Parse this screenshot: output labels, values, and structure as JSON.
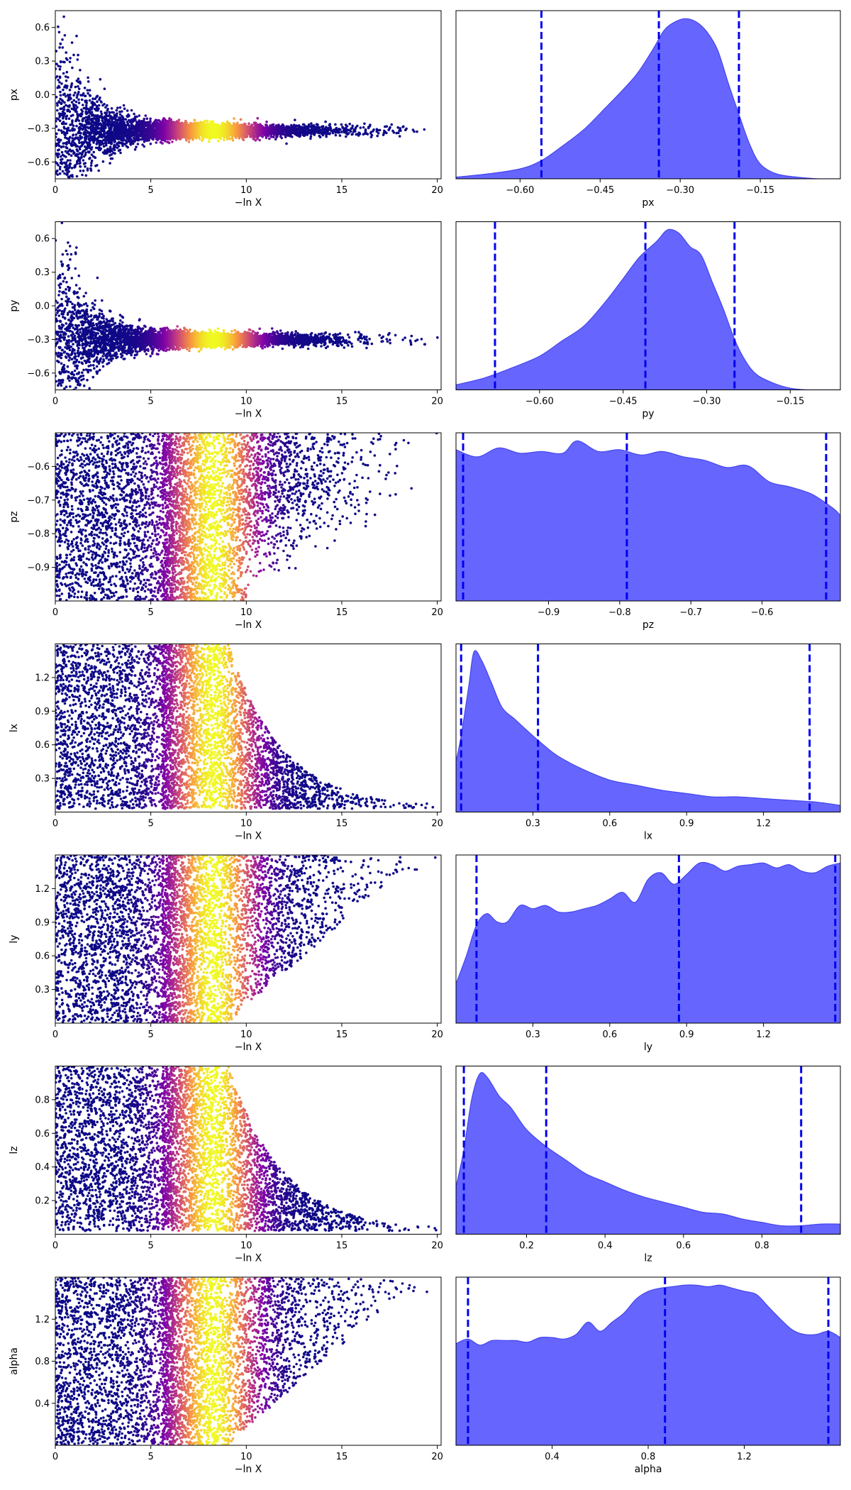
{
  "chart_data": [
    {
      "type": "scatter",
      "panel": "trace",
      "ylabel": "px",
      "xlabel": "−ln X",
      "xlim": [
        0,
        20.2
      ],
      "ylim": [
        -0.75,
        0.75
      ],
      "xticks": [
        0,
        5,
        10,
        15,
        20
      ],
      "yticks": [
        0.6,
        0.3,
        0.0,
        -0.3,
        -0.6
      ],
      "ytick_labels": [
        "0.6",
        "0.3",
        "0.0",
        "−0.3",
        "−0.6"
      ],
      "xtick_labels": [
        "0",
        "5",
        "10",
        "15",
        "20"
      ],
      "shape": {
        "kind": "converge",
        "center": -0.32,
        "width_end": 0.05,
        "decay": 0.65
      }
    },
    {
      "type": "area",
      "panel": "marginal",
      "xlabel": "px",
      "xlim": [
        -0.72,
        0.0
      ],
      "xticks": [
        -0.6,
        -0.45,
        -0.3,
        -0.15
      ],
      "xtick_labels": [
        "−0.60",
        "−0.45",
        "−0.30",
        "−0.15"
      ],
      "quantiles": [
        -0.56,
        -0.34,
        -0.19
      ],
      "density": {
        "x": [
          -0.72,
          -0.66,
          -0.6,
          -0.56,
          -0.52,
          -0.48,
          -0.44,
          -0.41,
          -0.38,
          -0.35,
          -0.33,
          -0.31,
          -0.29,
          -0.27,
          -0.25,
          -0.23,
          -0.21,
          -0.19,
          -0.17,
          -0.15,
          -0.12,
          -0.08,
          -0.04,
          0.0
        ],
        "y": [
          0.01,
          0.03,
          0.06,
          0.11,
          0.2,
          0.3,
          0.43,
          0.53,
          0.64,
          0.79,
          0.9,
          0.95,
          0.97,
          0.95,
          0.89,
          0.78,
          0.58,
          0.39,
          0.21,
          0.09,
          0.03,
          0.01,
          0.0,
          0.0
        ]
      }
    },
    {
      "type": "scatter",
      "panel": "trace",
      "ylabel": "py",
      "xlabel": "−ln X",
      "xlim": [
        0,
        20.2
      ],
      "ylim": [
        -0.75,
        0.75
      ],
      "xticks": [
        0,
        5,
        10,
        15,
        20
      ],
      "yticks": [
        0.6,
        0.3,
        0.0,
        -0.3,
        -0.6
      ],
      "ytick_labels": [
        "0.6",
        "0.3",
        "0.0",
        "−0.3",
        "−0.6"
      ],
      "xtick_labels": [
        "0",
        "5",
        "10",
        "15",
        "20"
      ],
      "shape": {
        "kind": "converge",
        "center": -0.3,
        "width_end": 0.05,
        "decay": 0.65
      }
    },
    {
      "type": "area",
      "panel": "marginal",
      "xlabel": "py",
      "xlim": [
        -0.75,
        -0.06
      ],
      "xticks": [
        -0.6,
        -0.45,
        -0.3,
        -0.15
      ],
      "xtick_labels": [
        "−0.60",
        "−0.45",
        "−0.30",
        "−0.15"
      ],
      "quantiles": [
        -0.68,
        -0.41,
        -0.25
      ],
      "density": {
        "x": [
          -0.75,
          -0.7,
          -0.65,
          -0.6,
          -0.56,
          -0.52,
          -0.48,
          -0.45,
          -0.42,
          -0.39,
          -0.37,
          -0.35,
          -0.33,
          -0.31,
          -0.29,
          -0.27,
          -0.25,
          -0.23,
          -0.21,
          -0.18,
          -0.15,
          -0.12,
          -0.09,
          -0.06
        ],
        "y": [
          0.03,
          0.07,
          0.13,
          0.2,
          0.29,
          0.38,
          0.53,
          0.66,
          0.79,
          0.88,
          0.95,
          0.93,
          0.85,
          0.8,
          0.64,
          0.48,
          0.3,
          0.17,
          0.09,
          0.04,
          0.01,
          0.0,
          0.0,
          0.0
        ]
      }
    },
    {
      "type": "scatter",
      "panel": "trace",
      "ylabel": "pz",
      "xlabel": "−ln X",
      "xlim": [
        0,
        20.2
      ],
      "ylim": [
        -1.0,
        -0.5
      ],
      "xticks": [
        0,
        5,
        10,
        15,
        20
      ],
      "yticks": [
        -0.6,
        -0.7,
        -0.8,
        -0.9
      ],
      "ytick_labels": [
        "−0.6",
        "−0.7",
        "−0.8",
        "−0.9"
      ],
      "xtick_labels": [
        "0",
        "5",
        "10",
        "15",
        "20"
      ],
      "shape": {
        "kind": "uniform_top",
        "lo": -1.0,
        "hi": -0.5
      }
    },
    {
      "type": "area",
      "panel": "marginal",
      "xlabel": "pz",
      "xlim": [
        -1.03,
        -0.49
      ],
      "xticks": [
        -0.9,
        -0.8,
        -0.7,
        -0.6
      ],
      "xtick_labels": [
        "−0.9",
        "−0.8",
        "−0.7",
        "−0.6"
      ],
      "quantiles": [
        -1.02,
        -0.79,
        -0.51
      ],
      "density": {
        "x": [
          -1.03,
          -1.0,
          -0.97,
          -0.94,
          -0.91,
          -0.88,
          -0.86,
          -0.83,
          -0.8,
          -0.77,
          -0.74,
          -0.71,
          -0.68,
          -0.65,
          -0.62,
          -0.59,
          -0.56,
          -0.53,
          -0.5,
          -0.49
        ],
        "y": [
          0.85,
          0.81,
          0.86,
          0.83,
          0.84,
          0.83,
          0.9,
          0.84,
          0.85,
          0.82,
          0.84,
          0.81,
          0.79,
          0.75,
          0.76,
          0.67,
          0.64,
          0.6,
          0.52,
          0.48
        ]
      }
    },
    {
      "type": "scatter",
      "panel": "trace",
      "ylabel": "lx",
      "xlabel": "−ln X",
      "xlim": [
        0,
        20.2
      ],
      "ylim": [
        0,
        1.5
      ],
      "xticks": [
        0,
        5,
        10,
        15,
        20
      ],
      "yticks": [
        1.2,
        0.9,
        0.6,
        0.3
      ],
      "ytick_labels": [
        "1.2",
        "0.9",
        "0.6",
        "0.3"
      ],
      "xtick_labels": [
        "0",
        "5",
        "10",
        "15",
        "20"
      ],
      "shape": {
        "kind": "decay_bottom",
        "lo": 0.0,
        "hi": 1.5
      }
    },
    {
      "type": "area",
      "panel": "marginal",
      "xlabel": "lx",
      "xlim": [
        0,
        1.5
      ],
      "xticks": [
        0.3,
        0.6,
        0.9,
        1.2
      ],
      "xtick_labels": [
        "0.3",
        "0.6",
        "0.9",
        "1.2"
      ],
      "quantiles": [
        0.02,
        0.32,
        1.38
      ],
      "density": {
        "x": [
          0.0,
          0.02,
          0.05,
          0.07,
          0.1,
          0.14,
          0.18,
          0.23,
          0.28,
          0.34,
          0.4,
          0.5,
          0.6,
          0.7,
          0.8,
          0.9,
          1.0,
          1.1,
          1.2,
          1.3,
          1.4,
          1.5
        ],
        "y": [
          0.3,
          0.45,
          0.75,
          0.95,
          0.9,
          0.76,
          0.62,
          0.55,
          0.48,
          0.4,
          0.33,
          0.25,
          0.19,
          0.16,
          0.13,
          0.11,
          0.09,
          0.09,
          0.08,
          0.07,
          0.06,
          0.04
        ]
      }
    },
    {
      "type": "scatter",
      "panel": "trace",
      "ylabel": "ly",
      "xlabel": "−ln X",
      "xlim": [
        0,
        20.2
      ],
      "ylim": [
        0,
        1.5
      ],
      "xticks": [
        0,
        5,
        10,
        15,
        20
      ],
      "yticks": [
        1.2,
        0.9,
        0.6,
        0.3
      ],
      "ytick_labels": [
        "1.2",
        "0.9",
        "0.6",
        "0.3"
      ],
      "xtick_labels": [
        "0",
        "5",
        "10",
        "15",
        "20"
      ],
      "shape": {
        "kind": "rise_top",
        "lo": 0.0,
        "hi": 1.5
      }
    },
    {
      "type": "area",
      "panel": "marginal",
      "xlabel": "ly",
      "xlim": [
        0,
        1.5
      ],
      "xticks": [
        0.3,
        0.6,
        0.9,
        1.2
      ],
      "xtick_labels": [
        "0.3",
        "0.6",
        "0.9",
        "1.2"
      ],
      "quantiles": [
        0.08,
        0.87,
        1.48
      ],
      "density": {
        "x": [
          0.0,
          0.04,
          0.08,
          0.12,
          0.16,
          0.2,
          0.25,
          0.3,
          0.35,
          0.4,
          0.45,
          0.5,
          0.55,
          0.6,
          0.65,
          0.7,
          0.75,
          0.8,
          0.85,
          0.9,
          0.95,
          1.0,
          1.05,
          1.1,
          1.15,
          1.2,
          1.25,
          1.3,
          1.35,
          1.4,
          1.45,
          1.5
        ],
        "y": [
          0.24,
          0.41,
          0.6,
          0.67,
          0.62,
          0.62,
          0.72,
          0.7,
          0.72,
          0.68,
          0.68,
          0.7,
          0.72,
          0.76,
          0.8,
          0.74,
          0.88,
          0.92,
          0.85,
          0.91,
          0.98,
          0.97,
          0.93,
          0.96,
          0.97,
          0.98,
          0.95,
          0.97,
          0.93,
          0.92,
          0.96,
          0.98
        ]
      }
    },
    {
      "type": "scatter",
      "panel": "trace",
      "ylabel": "lz",
      "xlabel": "−ln X",
      "xlim": [
        0,
        20.2
      ],
      "ylim": [
        0,
        1.0
      ],
      "xticks": [
        0,
        5,
        10,
        15,
        20
      ],
      "yticks": [
        0.8,
        0.6,
        0.4,
        0.2
      ],
      "ytick_labels": [
        "0.8",
        "0.6",
        "0.4",
        "0.2"
      ],
      "xtick_labels": [
        "0",
        "5",
        "10",
        "15",
        "20"
      ],
      "shape": {
        "kind": "decay_bottom",
        "lo": 0.0,
        "hi": 1.0
      }
    },
    {
      "type": "area",
      "panel": "marginal",
      "xlabel": "lz",
      "xlim": [
        0.02,
        1.0
      ],
      "xticks": [
        0.2,
        0.4,
        0.6,
        0.8
      ],
      "xtick_labels": [
        "0.2",
        "0.4",
        "0.6",
        "0.8"
      ],
      "quantiles": [
        0.04,
        0.25,
        0.9
      ],
      "density": {
        "x": [
          0.02,
          0.04,
          0.06,
          0.08,
          0.1,
          0.13,
          0.16,
          0.2,
          0.25,
          0.3,
          0.35,
          0.4,
          0.45,
          0.5,
          0.55,
          0.6,
          0.65,
          0.7,
          0.75,
          0.8,
          0.85,
          0.9,
          0.95,
          1.0
        ],
        "y": [
          0.28,
          0.5,
          0.8,
          0.95,
          0.93,
          0.82,
          0.75,
          0.62,
          0.52,
          0.44,
          0.36,
          0.31,
          0.26,
          0.22,
          0.19,
          0.16,
          0.13,
          0.12,
          0.09,
          0.07,
          0.05,
          0.05,
          0.06,
          0.06
        ]
      }
    },
    {
      "type": "scatter",
      "panel": "trace",
      "ylabel": "alpha",
      "xlabel": "−ln X",
      "xlim": [
        0,
        20.2
      ],
      "ylim": [
        0,
        1.6
      ],
      "xticks": [
        0,
        5,
        10,
        15,
        20
      ],
      "yticks": [
        1.2,
        0.8,
        0.4
      ],
      "ytick_labels": [
        "1.2",
        "0.8",
        "0.4"
      ],
      "xtick_labels": [
        "0",
        "5",
        "10",
        "15",
        "20"
      ],
      "shape": {
        "kind": "rise_top",
        "lo": 0.0,
        "hi": 1.6
      }
    },
    {
      "type": "area",
      "panel": "marginal",
      "xlabel": "alpha",
      "xlim": [
        0,
        1.6
      ],
      "xticks": [
        0.4,
        0.8,
        1.2
      ],
      "xtick_labels": [
        "0.4",
        "0.8",
        "1.2"
      ],
      "quantiles": [
        0.05,
        0.87,
        1.55
      ],
      "density": {
        "x": [
          0.0,
          0.05,
          0.1,
          0.15,
          0.2,
          0.25,
          0.3,
          0.35,
          0.4,
          0.45,
          0.5,
          0.55,
          0.6,
          0.65,
          0.7,
          0.75,
          0.8,
          0.85,
          0.9,
          0.95,
          1.0,
          1.05,
          1.1,
          1.15,
          1.2,
          1.25,
          1.3,
          1.35,
          1.4,
          1.45,
          1.5,
          1.55,
          1.6
        ],
        "y": [
          0.66,
          0.69,
          0.65,
          0.68,
          0.68,
          0.68,
          0.67,
          0.7,
          0.7,
          0.69,
          0.72,
          0.8,
          0.74,
          0.8,
          0.86,
          0.95,
          1.0,
          1.02,
          1.03,
          1.04,
          1.04,
          1.03,
          1.04,
          1.02,
          1.0,
          0.98,
          0.9,
          0.82,
          0.75,
          0.72,
          0.72,
          0.74,
          0.7
        ]
      }
    }
  ],
  "colors": {
    "fill": "#6666ff",
    "line": "#4444ee",
    "quantile": "#0000ee",
    "scatter_colormap": "plasma"
  }
}
